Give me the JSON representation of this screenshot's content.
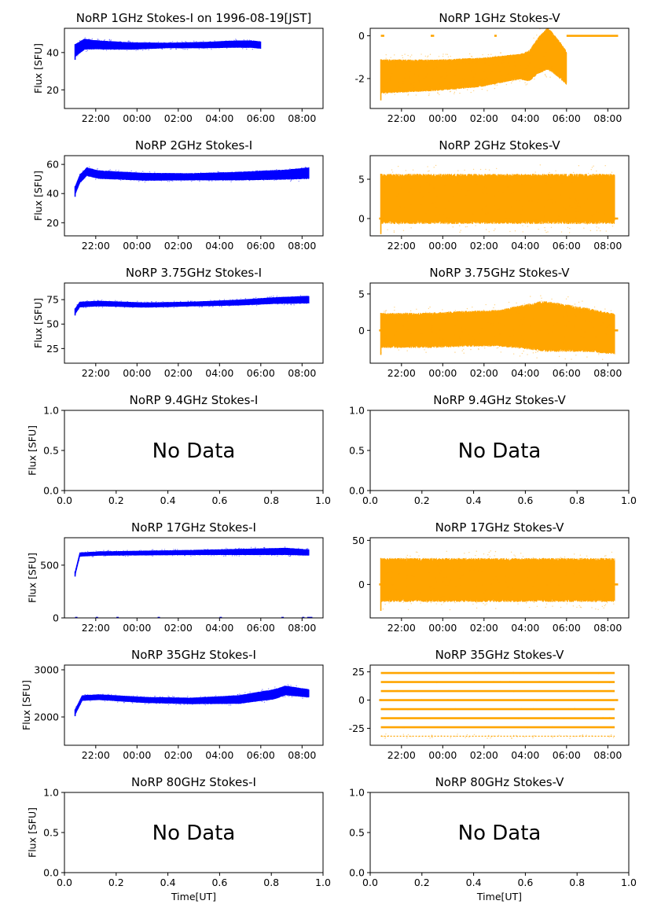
{
  "figure": {
    "xlabel": "Time[UT]",
    "ylabel": "Flux [SFU]",
    "no_data_text": "No Data"
  },
  "colors": {
    "stokes_i": "#0000ff",
    "stokes_v": "#ffa500",
    "axis": "#000000",
    "background": "#ffffff"
  },
  "chart_data": [
    {
      "type": "scatter",
      "title": "NoRP 1GHz Stokes-I on 1996-08-19[JST]",
      "ylabel": "Flux [SFU]",
      "color": "#0000ff",
      "xlim": [
        "20:29",
        "09:01"
      ],
      "ylim": [
        10,
        53
      ],
      "x_ticks": [
        "22:00",
        "00:00",
        "02:00",
        "04:00",
        "06:00",
        "08:00"
      ],
      "y_ticks": [
        20,
        40
      ],
      "x_range": [
        "21:00",
        "06:00"
      ],
      "mid": [
        [
          0,
          41
        ],
        [
          0.05,
          44.5
        ],
        [
          0.15,
          44
        ],
        [
          0.3,
          43.5
        ],
        [
          0.5,
          43.8
        ],
        [
          0.7,
          44
        ],
        [
          0.85,
          44.5
        ],
        [
          0.95,
          44.5
        ],
        [
          1,
          44
        ]
      ],
      "spread": [
        [
          0,
          3.5
        ],
        [
          0.1,
          2.5
        ],
        [
          0.5,
          1.5
        ],
        [
          0.9,
          2
        ],
        [
          1,
          2
        ]
      ],
      "extras": []
    },
    {
      "type": "scatter",
      "title": "NoRP 1GHz Stokes-V",
      "ylabel": "",
      "color": "#ffa500",
      "xlim": [
        "20:29",
        "09:01"
      ],
      "ylim": [
        -3.4,
        0.35
      ],
      "x_ticks": [
        "22:00",
        "00:00",
        "02:00",
        "04:00",
        "06:00",
        "08:00"
      ],
      "y_ticks": [
        -2,
        0
      ],
      "x_range": [
        "21:00",
        "06:00"
      ],
      "mid": [
        [
          0,
          -1.9
        ],
        [
          0.3,
          -1.85
        ],
        [
          0.55,
          -1.7
        ],
        [
          0.7,
          -1.5
        ],
        [
          0.8,
          -1.4
        ],
        [
          0.85,
          -0.9
        ],
        [
          0.9,
          -0.6
        ],
        [
          0.95,
          -1.0
        ],
        [
          1,
          -1.5
        ]
      ],
      "spread": [
        [
          0,
          0.8
        ],
        [
          0.5,
          0.7
        ],
        [
          0.75,
          0.6
        ],
        [
          0.9,
          1.0
        ],
        [
          1,
          0.8
        ]
      ],
      "extras": [
        {
          "x": [
            "21:00",
            "21:10"
          ],
          "y": 0
        },
        {
          "x": [
            "23:25",
            "23:35"
          ],
          "y": 0
        },
        {
          "x": [
            "02:30",
            "02:36"
          ],
          "y": 0
        },
        {
          "x": [
            "06:00",
            "08:30"
          ],
          "y": 0
        }
      ]
    },
    {
      "type": "scatter",
      "title": "NoRP 2GHz Stokes-I",
      "ylabel": "Flux [SFU]",
      "color": "#0000ff",
      "xlim": [
        "20:29",
        "09:01"
      ],
      "ylim": [
        11,
        66
      ],
      "x_ticks": [
        "22:00",
        "00:00",
        "02:00",
        "04:00",
        "06:00",
        "08:00"
      ],
      "y_ticks": [
        20,
        40,
        60
      ],
      "x_range": [
        "21:00",
        "08:20"
      ],
      "mid": [
        [
          0,
          42
        ],
        [
          0.02,
          50
        ],
        [
          0.05,
          55
        ],
        [
          0.1,
          53
        ],
        [
          0.3,
          51.5
        ],
        [
          0.5,
          51.5
        ],
        [
          0.7,
          52
        ],
        [
          0.9,
          53
        ],
        [
          1,
          54
        ]
      ],
      "spread": [
        [
          0,
          3
        ],
        [
          0.05,
          3
        ],
        [
          0.5,
          2.5
        ],
        [
          0.9,
          3.5
        ],
        [
          1,
          4
        ]
      ],
      "extras": []
    },
    {
      "type": "scatter",
      "title": "NoRP 2GHz Stokes-V",
      "ylabel": "",
      "color": "#ffa500",
      "xlim": [
        "20:29",
        "09:01"
      ],
      "ylim": [
        -2.2,
        8
      ],
      "x_ticks": [
        "22:00",
        "00:00",
        "02:00",
        "04:00",
        "06:00",
        "08:00"
      ],
      "y_ticks": [
        0,
        5
      ],
      "x_range": [
        "21:00",
        "08:20"
      ],
      "mid": [
        [
          0,
          2.5
        ],
        [
          1,
          2.5
        ]
      ],
      "spread": [
        [
          0,
          3.2
        ],
        [
          1,
          3.2
        ]
      ],
      "extras": [
        {
          "x": [
            "20:55",
            "21:00"
          ],
          "y": 0
        },
        {
          "x": [
            "08:20",
            "08:30"
          ],
          "y": 0
        }
      ]
    },
    {
      "type": "scatter",
      "title": "NoRP 3.75GHz Stokes-I",
      "ylabel": "Flux [SFU]",
      "color": "#0000ff",
      "xlim": [
        "20:29",
        "09:01"
      ],
      "ylim": [
        10,
        92
      ],
      "x_ticks": [
        "22:00",
        "00:00",
        "02:00",
        "04:00",
        "06:00",
        "08:00"
      ],
      "y_ticks": [
        25,
        50,
        75
      ],
      "x_range": [
        "21:00",
        "08:20"
      ],
      "mid": [
        [
          0,
          63
        ],
        [
          0.02,
          70
        ],
        [
          0.1,
          71
        ],
        [
          0.3,
          69.5
        ],
        [
          0.5,
          70.5
        ],
        [
          0.7,
          72
        ],
        [
          0.85,
          74
        ],
        [
          1,
          75
        ]
      ],
      "spread": [
        [
          0,
          3
        ],
        [
          0.5,
          2.5
        ],
        [
          0.85,
          3.5
        ],
        [
          1,
          4
        ]
      ],
      "extras": []
    },
    {
      "type": "scatter",
      "title": "NoRP 3.75GHz Stokes-V",
      "ylabel": "",
      "color": "#ffa500",
      "xlim": [
        "20:29",
        "09:01"
      ],
      "ylim": [
        -4.5,
        6.5
      ],
      "x_ticks": [
        "22:00",
        "00:00",
        "02:00",
        "04:00",
        "06:00",
        "08:00"
      ],
      "y_ticks": [
        0,
        5
      ],
      "x_range": [
        "21:00",
        "08:20"
      ],
      "mid": [
        [
          0,
          0
        ],
        [
          0.2,
          0
        ],
        [
          0.35,
          0.2
        ],
        [
          0.5,
          0.3
        ],
        [
          0.68,
          0.6
        ],
        [
          0.8,
          0.3
        ],
        [
          0.9,
          0
        ],
        [
          1,
          -0.5
        ]
      ],
      "spread": [
        [
          0,
          2.4
        ],
        [
          0.5,
          2.5
        ],
        [
          0.7,
          3.5
        ],
        [
          0.9,
          3.0
        ],
        [
          1,
          2.8
        ]
      ],
      "extras": [
        {
          "x": [
            "20:55",
            "21:00"
          ],
          "y": 0
        },
        {
          "x": [
            "08:20",
            "08:30"
          ],
          "y": 0
        }
      ]
    },
    {
      "type": "scatter",
      "title": "NoRP 9.4GHz Stokes-I",
      "ylabel": "Flux [SFU]",
      "no_data": "No Data",
      "xlim": [
        0,
        1
      ],
      "ylim": [
        0,
        1
      ],
      "x_ticks": [
        "0.0",
        "0.2",
        "0.4",
        "0.6",
        "0.8",
        "1.0"
      ],
      "y_ticks": [
        "0.0",
        "0.5",
        "1.0"
      ]
    },
    {
      "type": "scatter",
      "title": "NoRP 9.4GHz Stokes-V",
      "ylabel": "",
      "no_data": "No Data",
      "xlim": [
        0,
        1
      ],
      "ylim": [
        0,
        1
      ],
      "x_ticks": [
        "0.0",
        "0.2",
        "0.4",
        "0.6",
        "0.8",
        "1.0"
      ],
      "y_ticks": [
        "0.0",
        "0.5",
        "1.0"
      ]
    },
    {
      "type": "scatter",
      "title": "NoRP 17GHz Stokes-I",
      "ylabel": "Flux [SFU]",
      "color": "#0000ff",
      "xlim": [
        "20:29",
        "09:01"
      ],
      "ylim": [
        0,
        760
      ],
      "x_ticks": [
        "22:00",
        "00:00",
        "02:00",
        "04:00",
        "06:00",
        "08:00"
      ],
      "y_ticks": [
        0,
        500
      ],
      "x_range": [
        "21:00",
        "08:20"
      ],
      "mid": [
        [
          0,
          420
        ],
        [
          0.02,
          600
        ],
        [
          0.1,
          610
        ],
        [
          0.3,
          615
        ],
        [
          0.5,
          620
        ],
        [
          0.7,
          625
        ],
        [
          0.9,
          630
        ],
        [
          1,
          620
        ]
      ],
      "spread": [
        [
          0,
          20
        ],
        [
          0.5,
          25
        ],
        [
          0.9,
          35
        ],
        [
          1,
          30
        ]
      ],
      "extras": [
        {
          "x": [
            "21:00",
            "21:05"
          ],
          "y": 0
        },
        {
          "x": [
            "22:00",
            "22:05"
          ],
          "y": 0
        },
        {
          "x": [
            "23:00",
            "23:05"
          ],
          "y": 0
        },
        {
          "x": [
            "01:00",
            "01:05"
          ],
          "y": 0
        },
        {
          "x": [
            "04:00",
            "04:05"
          ],
          "y": 0
        },
        {
          "x": [
            "07:00",
            "07:05"
          ],
          "y": 0
        },
        {
          "x": [
            "08:00",
            "08:05"
          ],
          "y": 0
        },
        {
          "x": [
            "08:15",
            "08:30"
          ],
          "y": 0
        }
      ]
    },
    {
      "type": "scatter",
      "title": "NoRP 17GHz Stokes-V",
      "ylabel": "",
      "color": "#ffa500",
      "xlim": [
        "20:29",
        "09:01"
      ],
      "ylim": [
        -38,
        53
      ],
      "x_ticks": [
        "22:00",
        "00:00",
        "02:00",
        "04:00",
        "06:00",
        "08:00"
      ],
      "y_ticks": [
        0,
        50
      ],
      "x_range": [
        "21:00",
        "08:20"
      ],
      "mid": [
        [
          0,
          5
        ],
        [
          1,
          5
        ]
      ],
      "spread": [
        [
          0,
          25
        ],
        [
          1,
          25
        ]
      ],
      "extras": [
        {
          "x": [
            "20:55",
            "21:00"
          ],
          "y": 0
        },
        {
          "x": [
            "08:20",
            "08:30"
          ],
          "y": 0
        }
      ]
    },
    {
      "type": "scatter",
      "title": "NoRP 35GHz Stokes-I",
      "ylabel": "Flux [SFU]",
      "color": "#0000ff",
      "xlim": [
        "20:29",
        "09:01"
      ],
      "ylim": [
        1400,
        3100
      ],
      "x_ticks": [
        "22:00",
        "00:00",
        "02:00",
        "04:00",
        "06:00",
        "08:00"
      ],
      "y_ticks": [
        2000,
        3000
      ],
      "x_range": [
        "21:00",
        "08:20"
      ],
      "mid": [
        [
          0,
          2100
        ],
        [
          0.03,
          2400
        ],
        [
          0.1,
          2420
        ],
        [
          0.3,
          2360
        ],
        [
          0.5,
          2340
        ],
        [
          0.7,
          2370
        ],
        [
          0.85,
          2480
        ],
        [
          0.9,
          2560
        ],
        [
          1,
          2500
        ]
      ],
      "spread": [
        [
          0,
          60
        ],
        [
          0.5,
          70
        ],
        [
          0.85,
          110
        ],
        [
          1,
          90
        ]
      ],
      "extras": []
    },
    {
      "type": "scatter",
      "title": "NoRP 35GHz Stokes-V",
      "ylabel": "",
      "color": "#ffa500",
      "xlim": [
        "20:29",
        "09:01"
      ],
      "ylim": [
        -40,
        31
      ],
      "x_ticks": [
        "22:00",
        "00:00",
        "02:00",
        "04:00",
        "06:00",
        "08:00"
      ],
      "y_ticks": [
        -25,
        0,
        25
      ],
      "x_range": [
        "21:00",
        "08:20"
      ],
      "mid": [
        [
          0,
          0
        ],
        [
          1,
          0
        ]
      ],
      "spread": [
        [
          0,
          0
        ],
        [
          1,
          0
        ]
      ],
      "levels": [
        24,
        16,
        8,
        0,
        -8,
        -16,
        -24,
        -32
      ],
      "extras": [
        {
          "x": [
            "20:55",
            "21:00"
          ],
          "y": 0
        },
        {
          "x": [
            "08:20",
            "08:30"
          ],
          "y": 0
        }
      ]
    },
    {
      "type": "scatter",
      "title": "NoRP 80GHz Stokes-I",
      "ylabel": "Flux [SFU]",
      "xlabel": "Time[UT]",
      "no_data": "No Data",
      "xlim": [
        0,
        1
      ],
      "ylim": [
        0,
        1
      ],
      "x_ticks": [
        "0.0",
        "0.2",
        "0.4",
        "0.6",
        "0.8",
        "1.0"
      ],
      "y_ticks": [
        "0.0",
        "0.5",
        "1.0"
      ]
    },
    {
      "type": "scatter",
      "title": "NoRP 80GHz Stokes-V",
      "ylabel": "",
      "xlabel": "Time[UT]",
      "no_data": "No Data",
      "xlim": [
        0,
        1
      ],
      "ylim": [
        0,
        1
      ],
      "x_ticks": [
        "0.0",
        "0.2",
        "0.4",
        "0.6",
        "0.8",
        "1.0"
      ],
      "y_ticks": [
        "0.0",
        "0.5",
        "1.0"
      ]
    }
  ]
}
